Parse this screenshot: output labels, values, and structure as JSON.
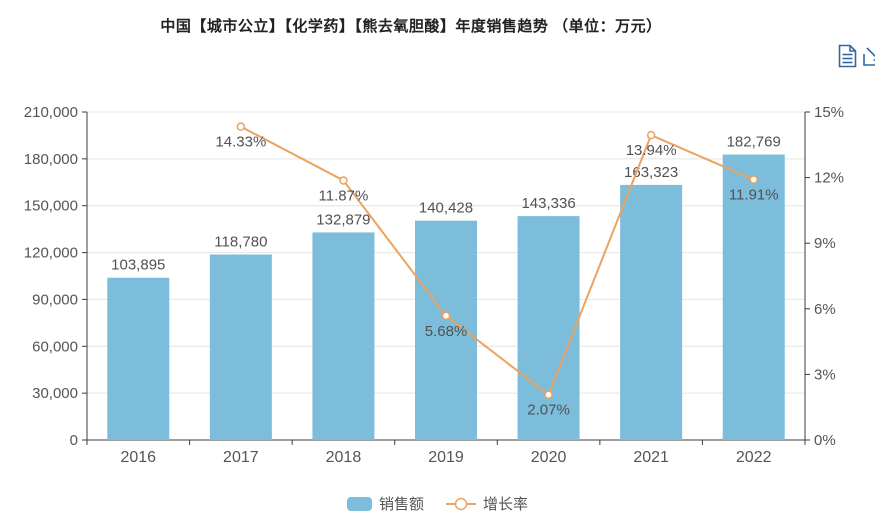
{
  "title": {
    "text": "中国【城市公立】【化学药】【熊去氧胆酸】年度销售趋势 （单位：万元）"
  },
  "toolbox": {
    "icons": [
      {
        "name": "data-view"
      },
      {
        "name": "save-as-image"
      }
    ],
    "color": "#34689b"
  },
  "legend": {
    "items": [
      {
        "label": "销售额",
        "type": "bar"
      },
      {
        "label": "增长率",
        "type": "line"
      }
    ]
  },
  "chart_data": {
    "type": "bar+line",
    "categories": [
      "2016",
      "2017",
      "2018",
      "2019",
      "2020",
      "2021",
      "2022"
    ],
    "series": [
      {
        "name": "销售额",
        "type": "bar",
        "axis": "left",
        "color": "#7cbddb",
        "values": [
          103895,
          118780,
          132879,
          140428,
          143336,
          163323,
          182769
        ]
      },
      {
        "name": "增长率",
        "type": "line",
        "axis": "right",
        "color": "#eca35d",
        "values": [
          null,
          14.33,
          11.87,
          5.68,
          2.07,
          13.94,
          11.91
        ]
      }
    ],
    "bar_labels": [
      "103,895",
      "118,780",
      "132,879",
      "140,428",
      "143,336",
      "163,323",
      "182,769"
    ],
    "line_labels": [
      null,
      "14.33%",
      "11.87%",
      "5.68%",
      "2.07%",
      "13.94%",
      "11.91%"
    ],
    "left_axis": {
      "min": 0,
      "max": 210000,
      "step": 30000,
      "tick_labels": [
        "0",
        "30,000",
        "60,000",
        "90,000",
        "120,000",
        "150,000",
        "180,000",
        "210,000"
      ]
    },
    "right_axis": {
      "min": 0,
      "max": 15,
      "step": 3,
      "tick_labels": [
        "0%",
        "3%",
        "6%",
        "9%",
        "12%",
        "15%"
      ]
    },
    "grid": "horizontal",
    "legend_position": "bottom"
  },
  "colors": {
    "bar": "#7cbddb",
    "line": "#eca35d",
    "grid": "#e4e4e4",
    "axis": "#3d3d3d",
    "axis_text": "#555555",
    "data_label": "#525252",
    "title_text": "#222222",
    "toolbox": "#34689b"
  }
}
